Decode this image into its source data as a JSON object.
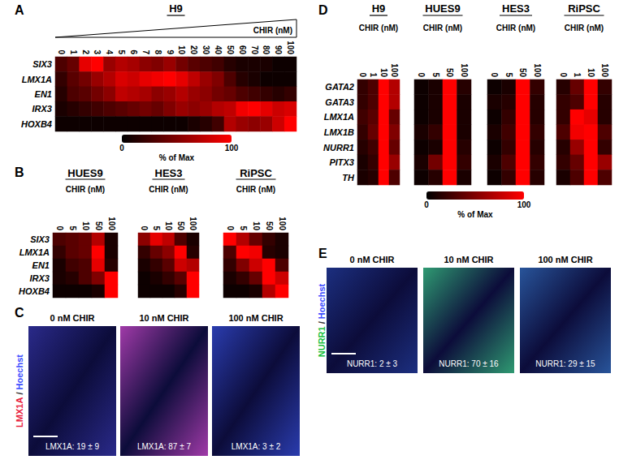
{
  "chart_data": [
    {
      "panel": "A",
      "type": "heatmap",
      "title": "H9",
      "xlabel": "CHIR (nM)",
      "categories": [
        0,
        1,
        2,
        3,
        4,
        5,
        6,
        7,
        8,
        9,
        10,
        20,
        30,
        40,
        50,
        60,
        70,
        80,
        90,
        100
      ],
      "rows": [
        "SIX3",
        "LMX1A",
        "EN1",
        "IRX3",
        "HOXB4"
      ],
      "cells": [
        [
          30,
          40,
          90,
          100,
          60,
          70,
          65,
          55,
          50,
          60,
          45,
          35,
          30,
          25,
          15,
          10,
          10,
          10,
          5,
          5
        ],
        [
          20,
          35,
          45,
          60,
          70,
          85,
          80,
          90,
          95,
          100,
          90,
          75,
          60,
          50,
          30,
          15,
          10,
          5,
          5,
          5
        ],
        [
          15,
          30,
          35,
          45,
          55,
          75,
          70,
          65,
          55,
          60,
          70,
          60,
          55,
          45,
          40,
          30,
          25,
          20,
          15,
          20
        ],
        [
          10,
          15,
          20,
          25,
          30,
          35,
          40,
          45,
          40,
          50,
          60,
          55,
          60,
          70,
          75,
          95,
          100,
          90,
          80,
          85
        ],
        [
          5,
          5,
          5,
          5,
          5,
          5,
          5,
          5,
          5,
          5,
          5,
          10,
          15,
          25,
          70,
          60,
          55,
          60,
          80,
          100
        ]
      ],
      "colorbar": {
        "range": [
          0,
          100
        ],
        "ticks": [
          0,
          100
        ],
        "label": "% of Max",
        "colors": [
          "#000000",
          "#ff0000"
        ]
      }
    },
    {
      "panel": "B",
      "type": "heatmap",
      "subplots": [
        {
          "title": "HUES9",
          "xlabel": "CHIR (nM)",
          "categories": [
            0,
            5,
            10,
            50,
            100
          ],
          "rows": [
            "SIX3",
            "LMX1A",
            "EN1",
            "IRX3",
            "HOXB4"
          ],
          "cells": [
            [
              30,
              35,
              40,
              70,
              10
            ],
            [
              20,
              35,
              40,
              100,
              10
            ],
            [
              10,
              25,
              30,
              90,
              15
            ],
            [
              10,
              15,
              30,
              50,
              100
            ],
            [
              5,
              5,
              5,
              10,
              100
            ]
          ]
        },
        {
          "title": "HES3",
          "xlabel": "CHIR (nM)",
          "categories": [
            0,
            5,
            10,
            50,
            100
          ],
          "rows": [
            "SIX3",
            "LMX1A",
            "EN1",
            "IRX3",
            "HOXB4"
          ],
          "cells": [
            [
              55,
              90,
              75,
              30,
              10
            ],
            [
              20,
              40,
              55,
              100,
              15
            ],
            [
              10,
              20,
              35,
              80,
              70
            ],
            [
              5,
              10,
              20,
              35,
              100
            ],
            [
              5,
              5,
              5,
              15,
              100
            ]
          ]
        },
        {
          "title": "RiPSC",
          "xlabel": "CHIR (nM)",
          "categories": [
            0,
            5,
            10,
            50,
            100
          ],
          "rows": [
            "SIX3",
            "LMX1A",
            "EN1",
            "IRX3",
            "HOXB4"
          ],
          "cells": [
            [
              100,
              70,
              40,
              20,
              10
            ],
            [
              30,
              100,
              95,
              15,
              10
            ],
            [
              20,
              50,
              80,
              100,
              30
            ],
            [
              10,
              20,
              40,
              100,
              80
            ],
            [
              5,
              5,
              10,
              70,
              100
            ]
          ]
        }
      ]
    },
    {
      "panel": "C",
      "type": "image",
      "channel_label": "LMX1A / Hoechst",
      "channel_colors": [
        "#e8203c",
        "#3a4cff"
      ],
      "images": [
        {
          "title": "0 nM CHIR",
          "label": "LMX1A: 19 ± 9",
          "color": "#2a2a8a"
        },
        {
          "title": "10 nM CHIR",
          "label": "LMX1A: 87 ± 7",
          "color": "#a03aa8"
        },
        {
          "title": "100 nM CHIR",
          "label": "LMX1A: 3 ± 2",
          "color": "#2a3cae"
        }
      ]
    },
    {
      "panel": "D",
      "type": "heatmap",
      "subplots": [
        {
          "title": "H9",
          "xlabel": "CHIR (nM)",
          "categories": [
            0,
            1,
            10,
            100
          ],
          "rows": [
            "GATA2",
            "GATA3",
            "LMX1A",
            "LMX1B",
            "NURR1",
            "PITX3",
            "TH"
          ],
          "cells": [
            [
              20,
              30,
              100,
              70
            ],
            [
              20,
              30,
              100,
              70
            ],
            [
              25,
              35,
              100,
              40
            ],
            [
              20,
              40,
              100,
              50
            ],
            [
              15,
              25,
              100,
              40
            ],
            [
              10,
              20,
              100,
              60
            ],
            [
              10,
              15,
              100,
              30
            ]
          ]
        },
        {
          "title": "HUES9",
          "xlabel": "CHIR (nM)",
          "categories": [
            0,
            5,
            50,
            100
          ],
          "rows": [
            "GATA2",
            "GATA3",
            "LMX1A",
            "LMX1B",
            "NURR1",
            "PITX3",
            "TH"
          ],
          "cells": [
            [
              5,
              10,
              100,
              15
            ],
            [
              5,
              10,
              100,
              10
            ],
            [
              5,
              10,
              100,
              10
            ],
            [
              10,
              20,
              100,
              10
            ],
            [
              5,
              10,
              100,
              15
            ],
            [
              10,
              45,
              100,
              20
            ],
            [
              5,
              15,
              100,
              10
            ]
          ]
        },
        {
          "title": "HES3",
          "xlabel": "CHIR (nM)",
          "categories": [
            0,
            5,
            50,
            100
          ],
          "rows": [
            "GATA2",
            "GATA3",
            "LMX1A",
            "LMX1B",
            "NURR1",
            "PITX3",
            "TH"
          ],
          "cells": [
            [
              5,
              10,
              100,
              20
            ],
            [
              10,
              15,
              100,
              15
            ],
            [
              5,
              20,
              100,
              15
            ],
            [
              10,
              25,
              100,
              20
            ],
            [
              5,
              20,
              100,
              15
            ],
            [
              10,
              30,
              100,
              20
            ],
            [
              5,
              20,
              100,
              15
            ]
          ]
        },
        {
          "title": "RiPSC",
          "xlabel": "CHIR (nM)",
          "categories": [
            0,
            1,
            10,
            100
          ],
          "rows": [
            "GATA2",
            "GATA3",
            "LMX1A",
            "LMX1B",
            "NURR1",
            "PITX3",
            "TH"
          ],
          "cells": [
            [
              15,
              40,
              100,
              20
            ],
            [
              20,
              30,
              100,
              15
            ],
            [
              20,
              100,
              90,
              15
            ],
            [
              30,
              95,
              100,
              30
            ],
            [
              15,
              60,
              100,
              20
            ],
            [
              20,
              40,
              100,
              60
            ],
            [
              10,
              30,
              100,
              30
            ]
          ]
        }
      ],
      "colorbar": {
        "range": [
          0,
          100
        ],
        "ticks": [
          0,
          100
        ],
        "label": "% of Max",
        "colors": [
          "#000000",
          "#ff0000"
        ]
      }
    },
    {
      "panel": "E",
      "type": "image",
      "channel_label": "NURR1 / Hoechst",
      "channel_colors": [
        "#20c040",
        "#3a4cff"
      ],
      "images": [
        {
          "title": "0 nM CHIR",
          "label": "NURR1: 2 ± 3",
          "color": "#1c2f80"
        },
        {
          "title": "10 nM CHIR",
          "label": "NURR1: 70 ± 16",
          "color": "#2f9a72"
        },
        {
          "title": "100 nM CHIR",
          "label": "NURR1: 29 ± 15",
          "color": "#28549a"
        }
      ]
    }
  ]
}
